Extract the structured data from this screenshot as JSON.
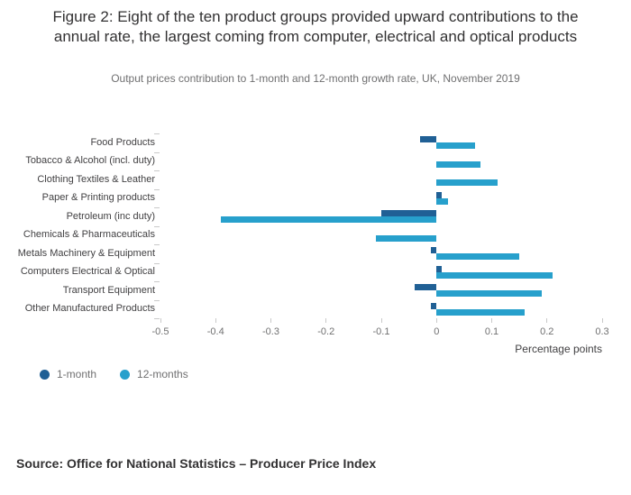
{
  "chart_data": {
    "type": "bar",
    "orientation": "horizontal",
    "title": "Figure 2: Eight of the ten product groups provided upward contributions to the annual rate, the largest coming from computer, electrical and optical products",
    "subtitle": "Output prices contribution to 1-month and 12-month growth rate, UK, November 2019",
    "categories": [
      "Food Products",
      "Tobacco & Alcohol (incl. duty)",
      "Clothing Textiles & Leather",
      "Paper & Printing products",
      "Petroleum (inc duty)",
      "Chemicals & Pharmaceuticals",
      "Metals Machinery & Equipment",
      "Computers Electrical & Optical",
      "Transport Equipment",
      "Other Manufactured Products"
    ],
    "series": [
      {
        "name": "1-month",
        "color": "#206095",
        "values": [
          -0.03,
          0,
          0,
          0.01,
          -0.1,
          0,
          -0.01,
          0.01,
          -0.04,
          -0.01
        ]
      },
      {
        "name": "12-months",
        "color": "#27a0cc",
        "values": [
          0.07,
          0.08,
          0.11,
          0.02,
          -0.39,
          -0.11,
          0.15,
          0.21,
          0.19,
          0.16
        ]
      }
    ],
    "xlim": [
      -0.5,
      0.3
    ],
    "xticks": [
      -0.5,
      -0.4,
      -0.3,
      -0.2,
      -0.1,
      0,
      0.1,
      0.2,
      0.3
    ],
    "xlabel": "Percentage points",
    "grid": false,
    "legend_position": "bottom-left"
  },
  "source": "Source: Office for National Statistics – Producer Price Index"
}
